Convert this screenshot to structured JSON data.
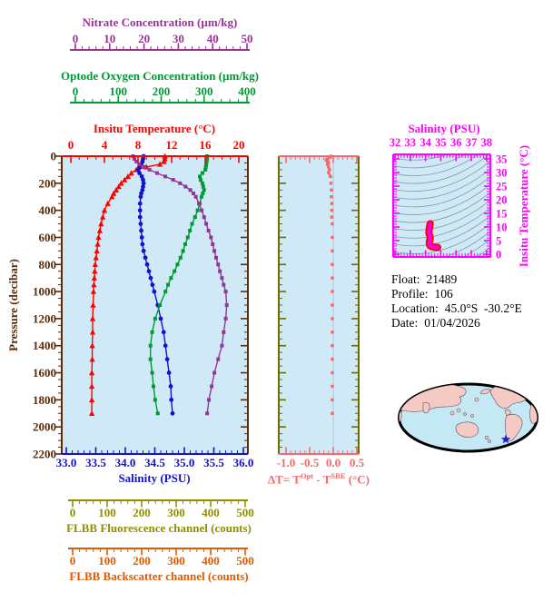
{
  "info": {
    "float_label": "Float:",
    "float_value": "21489",
    "profile_label": "Profile:",
    "profile_value": "106",
    "location_label": "Location:",
    "location_value": "45.0°S  -30.2°E",
    "date_label": "Date:",
    "date_value": "01/04/2026"
  },
  "colors": {
    "nitrate": "#993399",
    "oxygen": "#009933",
    "temperature": "#ff0000",
    "pressure": "#5a2d0c",
    "salinity": "#1212cf",
    "delta": "#f4696b",
    "olive": "#6b6b00",
    "fluorescence": "#8f8f00",
    "backscatter": "#e05a00",
    "ts_frame": "#ff00ff",
    "ts_curve": "#ff00e0",
    "ts_curve_edge": "#ff0000",
    "plot_bg": "#cfeaf6",
    "contour": "#8598a8",
    "zero_line": "#b4c4d0",
    "map_ocean": "#c5e8f5",
    "map_land": "#f5c9c4",
    "map_border": "#000000",
    "star": "#1c1ccc",
    "info_text": "#000000"
  },
  "chart_data": {
    "main_profiles": {
      "type": "line",
      "y_axis": {
        "label": "Pressure (decibar)",
        "range": [
          0,
          2200
        ],
        "inverted": true,
        "tick_labels": [
          "0",
          "200",
          "400",
          "600",
          "800",
          "1000",
          "1200",
          "1400",
          "1600",
          "1800",
          "2000",
          "2200"
        ]
      },
      "x_axes": {
        "temperature": {
          "label": "Insitu Temperature (°C)",
          "range": [
            0,
            20
          ],
          "tick_labels": [
            "0",
            "4",
            "8",
            "12",
            "16",
            "20"
          ],
          "position": "plot-top"
        },
        "salinity": {
          "label": "Salinity (PSU)",
          "range": [
            33,
            36
          ],
          "tick_labels": [
            "33.0",
            "33.5",
            "34.0",
            "34.5",
            "35.0",
            "35.5",
            "36.0"
          ],
          "position": "plot-bottom"
        },
        "nitrate": {
          "label": "Nitrate Concentration (µm/kg)",
          "range": [
            0,
            50
          ],
          "tick_labels": [
            "0",
            "10",
            "20",
            "30",
            "40",
            "50"
          ],
          "position": "above"
        },
        "oxygen": {
          "label": "Optode Oxygen Concentration (µm/kg)",
          "range": [
            0,
            400
          ],
          "tick_labels": [
            "0",
            "100",
            "200",
            "300",
            "400"
          ],
          "position": "above"
        },
        "fluorescence": {
          "label": "FLBB Fluorescence channel (counts)",
          "range": [
            0,
            500
          ],
          "tick_labels": [
            "0",
            "100",
            "200",
            "300",
            "400",
            "500"
          ],
          "position": "below",
          "note": "axis shown, no profile plotted"
        },
        "backscatter": {
          "label": "FLBB Backscatter channel (counts)",
          "range": [
            0,
            500
          ],
          "tick_labels": [
            "0",
            "100",
            "200",
            "300",
            "400",
            "500"
          ],
          "position": "below",
          "note": "axis shown, no profile plotted"
        }
      },
      "pressure": [
        0,
        20,
        40,
        60,
        80,
        100,
        125,
        150,
        175,
        200,
        225,
        250,
        275,
        300,
        350,
        400,
        450,
        500,
        550,
        600,
        650,
        700,
        750,
        800,
        850,
        900,
        950,
        1000,
        1100,
        1200,
        1300,
        1400,
        1500,
        1600,
        1700,
        1800,
        1900
      ],
      "series": [
        {
          "name": "temperature",
          "marker": "triangle",
          "values": [
            11.2,
            11.2,
            11.1,
            10.6,
            9.0,
            7.8,
            7.2,
            6.8,
            6.4,
            6.0,
            5.7,
            5.4,
            5.1,
            4.9,
            4.4,
            4.0,
            3.8,
            3.6,
            3.45,
            3.3,
            3.2,
            3.1,
            3.0,
            2.9,
            2.85,
            2.8,
            2.75,
            2.7,
            2.65,
            2.6,
            2.6,
            2.55,
            2.55,
            2.5,
            2.5,
            2.5,
            2.5
          ]
        },
        {
          "name": "salinity",
          "marker": "circle",
          "values": [
            34.31,
            34.3,
            34.29,
            34.27,
            34.24,
            34.22,
            34.24,
            34.28,
            34.3,
            34.31,
            34.3,
            34.29,
            34.27,
            34.26,
            34.25,
            34.25,
            34.25,
            34.26,
            34.27,
            34.28,
            34.29,
            34.31,
            34.34,
            34.37,
            34.4,
            34.43,
            34.46,
            34.49,
            34.55,
            34.6,
            34.65,
            34.68,
            34.71,
            34.74,
            34.77,
            34.78,
            34.8
          ]
        },
        {
          "name": "oxygen",
          "marker": "square",
          "values": [
            307,
            307,
            306,
            305,
            304,
            303,
            296,
            290,
            292,
            296,
            298,
            300,
            297,
            294,
            290,
            285,
            279,
            272,
            267,
            262,
            256,
            251,
            245,
            238,
            231,
            223,
            216,
            210,
            197,
            186,
            179,
            175,
            175,
            179,
            182,
            186,
            192
          ]
        },
        {
          "name": "nitrate",
          "marker": "square",
          "values": [
            16.8,
            17.2,
            17.8,
            18.6,
            20.0,
            21.6,
            23.8,
            26.2,
            28.5,
            30.5,
            32.1,
            33.5,
            34.4,
            35.1,
            36.0,
            36.8,
            37.5,
            38.1,
            38.8,
            39.5,
            40.0,
            40.5,
            41.0,
            41.6,
            42.1,
            42.7,
            43.2,
            43.8,
            44.1,
            43.8,
            43.2,
            42.7,
            41.6,
            40.5,
            39.7,
            38.9,
            38.4
          ]
        }
      ]
    },
    "delta_t": {
      "type": "scatter",
      "x_range": [
        -1.15,
        0.55
      ],
      "tick_labels": [
        "-1.0",
        "-0.5",
        "0.0",
        "0.5"
      ],
      "tick_values": [
        -1.0,
        -0.5,
        0.0,
        0.5
      ],
      "pressure": [
        0,
        10,
        20,
        30,
        40,
        50,
        60,
        80,
        100,
        120,
        150,
        200,
        250,
        300,
        350,
        400,
        450,
        500,
        600,
        700,
        800,
        900,
        1000,
        1100,
        1200,
        1300,
        1400,
        1500,
        1600,
        1700,
        1800,
        1900
      ],
      "values": [
        -0.05,
        -0.08,
        -0.12,
        -0.15,
        -0.12,
        -0.1,
        -0.12,
        -0.1,
        -0.08,
        -0.1,
        -0.06,
        -0.05,
        -0.04,
        -0.04,
        -0.03,
        -0.03,
        -0.03,
        -0.02,
        -0.02,
        -0.02,
        -0.02,
        -0.02,
        -0.02,
        -0.02,
        -0.02,
        -0.02,
        -0.02,
        -0.02,
        -0.02,
        -0.02,
        -0.02,
        -0.02
      ],
      "xlabel_parts": {
        "pre": "ΔT= T",
        "sup1": "Opt",
        "mid": " - T",
        "sup2": "SBE",
        "post": " (°C)"
      }
    },
    "ts_diagram": {
      "type": "line",
      "xlabel": "Salinity (PSU)",
      "ylabel": "Insitu Temperature (°C)",
      "x_range": [
        32,
        38
      ],
      "x_tick_labels": [
        "32",
        "33",
        "34",
        "35",
        "36",
        "37",
        "38"
      ],
      "y_range": [
        0,
        35
      ],
      "y_tick_labels": [
        "0",
        "5",
        "10",
        "15",
        "20",
        "25",
        "30",
        "35"
      ],
      "points": [
        [
          34.31,
          11.2
        ],
        [
          34.29,
          10.8
        ],
        [
          34.24,
          9.0
        ],
        [
          34.22,
          7.8
        ],
        [
          34.28,
          6.8
        ],
        [
          34.31,
          6.0
        ],
        [
          34.29,
          5.4
        ],
        [
          34.26,
          4.9
        ],
        [
          34.25,
          4.0
        ],
        [
          34.26,
          3.6
        ],
        [
          34.28,
          3.3
        ],
        [
          34.31,
          3.1
        ],
        [
          34.37,
          2.9
        ],
        [
          34.43,
          2.8
        ],
        [
          34.49,
          2.7
        ],
        [
          34.55,
          2.65
        ],
        [
          34.6,
          2.6
        ],
        [
          34.68,
          2.55
        ],
        [
          34.74,
          2.5
        ],
        [
          34.8,
          2.5
        ]
      ],
      "contours": "unlabeled gray isopycnal curves"
    },
    "map": {
      "type": "world-map",
      "projection": "oval, Pacific-centered",
      "marker": "blue star at float location (South Atlantic)"
    }
  }
}
